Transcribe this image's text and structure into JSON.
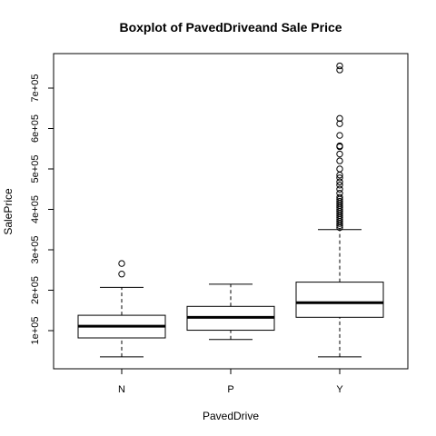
{
  "chart_data": {
    "type": "boxplot",
    "title": "Boxplot of PavedDriveand Sale Price",
    "xlabel": "PavedDrive",
    "ylabel": "SalePrice",
    "ylim": [
      0,
      780000
    ],
    "yticks": [
      {
        "value": 100000,
        "label": "1e+05"
      },
      {
        "value": 200000,
        "label": "2e+05"
      },
      {
        "value": 300000,
        "label": "3e+05"
      },
      {
        "value": 400000,
        "label": "4e+05"
      },
      {
        "value": 500000,
        "label": "5e+05"
      },
      {
        "value": 600000,
        "label": "6e+05"
      },
      {
        "value": 700000,
        "label": "7e+05"
      }
    ],
    "categories": [
      "N",
      "P",
      "Y"
    ],
    "boxes": [
      {
        "category": "N",
        "whisker_low": 35000,
        "q1": 82000,
        "median": 111000,
        "q3": 138000,
        "whisker_high": 207000,
        "outliers": [
          240000,
          266000
        ]
      },
      {
        "category": "P",
        "whisker_low": 78000,
        "q1": 101000,
        "median": 133000,
        "q3": 160000,
        "whisker_high": 215000,
        "outliers": []
      },
      {
        "category": "Y",
        "whisker_low": 35000,
        "q1": 133000,
        "median": 169000,
        "q3": 220000,
        "whisker_high": 350000,
        "outliers": [
          355000,
          360000,
          365000,
          370000,
          375000,
          380000,
          385000,
          390000,
          395000,
          400000,
          405000,
          410000,
          415000,
          420000,
          425000,
          430000,
          440000,
          450000,
          460000,
          468000,
          478000,
          485000,
          500000,
          520000,
          537000,
          555000,
          557000,
          583000,
          612000,
          625000,
          745000,
          755000
        ]
      }
    ]
  }
}
